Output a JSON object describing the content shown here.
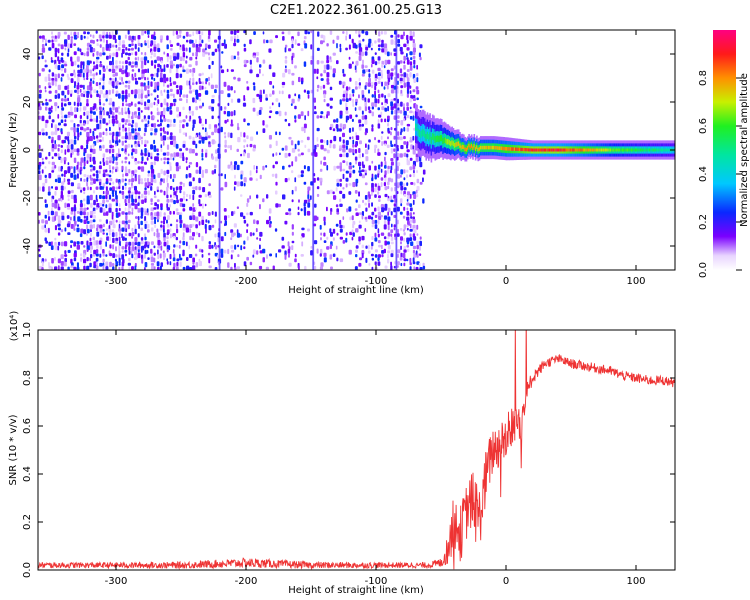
{
  "figure_title": "C2E1.2022.361.00.25.G13",
  "colors": {
    "snr_line": "#ee3333",
    "spectrogram_noise": "#6a00ff",
    "background": "#ffffff",
    "frame": "#000000"
  },
  "chart_data": [
    {
      "type": "heatmap",
      "name": "spectrogram",
      "title": "",
      "xlabel": "Height of straight line (km)",
      "ylabel": "Frequency (Hz)",
      "xlim": [
        -360,
        130
      ],
      "ylim": [
        -50,
        50
      ],
      "xticks": [
        -300,
        -200,
        -100,
        0,
        100
      ],
      "xtick_labels": [
        "-300",
        "-200",
        "-100",
        "0",
        "100"
      ],
      "yticks": [
        -40,
        -20,
        0,
        20,
        40
      ],
      "ytick_labels": [
        "-40",
        "-20",
        "0",
        "20",
        "40"
      ],
      "noise_region_x": [
        -360,
        -68
      ],
      "signal_track": {
        "x": [
          -70,
          -60,
          -50,
          -40,
          -30,
          -20,
          -10,
          0,
          20,
          40,
          60,
          80,
          100,
          130
        ],
        "freq": [
          9,
          5,
          4,
          2,
          1,
          1,
          1,
          0.5,
          0,
          0,
          0,
          0,
          0,
          0
        ],
        "width": [
          6,
          6,
          5,
          4,
          3,
          3,
          3,
          3,
          2.5,
          2.5,
          2.5,
          2.5,
          2.5,
          2.5
        ],
        "amplitude": [
          0.5,
          0.55,
          0.65,
          0.75,
          0.85,
          0.8,
          0.8,
          0.85,
          0.95,
          0.95,
          0.85,
          0.7,
          0.6,
          0.5
        ]
      },
      "colorbar": {
        "label": "Normalized spectral amplitude",
        "range": [
          0,
          1
        ],
        "ticks": [
          0.0,
          0.2,
          0.4,
          0.6,
          0.8
        ],
        "tick_labels": [
          "0.0",
          "0.2",
          "0.4",
          "0.6",
          "0.8"
        ]
      }
    },
    {
      "type": "line",
      "name": "snr",
      "title": "",
      "xlabel": "Height of straight line (km)",
      "ylabel": "SNR (10 * v/v)",
      "yscale_note": "(x10⁴)",
      "xlim": [
        -360,
        130
      ],
      "ylim": [
        0,
        1.0
      ],
      "xticks": [
        -300,
        -200,
        -100,
        0,
        100
      ],
      "xtick_labels": [
        "-300",
        "-200",
        "-100",
        "0",
        "100"
      ],
      "yticks": [
        0.0,
        0.2,
        0.4,
        0.6,
        0.8,
        1.0
      ],
      "ytick_labels": [
        "0.0",
        "0.2",
        "0.4",
        "0.6",
        "0.8",
        "1.0"
      ],
      "series": [
        {
          "name": "SNR",
          "x": [
            -360,
            -300,
            -250,
            -200,
            -150,
            -100,
            -60,
            -50,
            -45,
            -40,
            -35,
            -30,
            -25,
            -20,
            -15,
            -10,
            -5,
            0,
            5,
            10,
            20,
            30,
            40,
            50,
            60,
            70,
            80,
            90,
            100,
            110,
            120,
            130
          ],
          "y": [
            0.02,
            0.02,
            0.02,
            0.03,
            0.02,
            0.02,
            0.02,
            0.03,
            0.08,
            0.2,
            0.15,
            0.25,
            0.3,
            0.22,
            0.4,
            0.5,
            0.52,
            0.55,
            0.6,
            0.62,
            0.8,
            0.86,
            0.88,
            0.86,
            0.85,
            0.84,
            0.83,
            0.81,
            0.8,
            0.79,
            0.79,
            0.78
          ],
          "noise": [
            0.012,
            0.012,
            0.014,
            0.02,
            0.014,
            0.012,
            0.012,
            0.02,
            0.06,
            0.12,
            0.12,
            0.12,
            0.12,
            0.12,
            0.12,
            0.1,
            0.1,
            0.1,
            0.09,
            0.09,
            0.03,
            0.02,
            0.02,
            0.02,
            0.02,
            0.02,
            0.02,
            0.02,
            0.02,
            0.02,
            0.02,
            0.02
          ]
        }
      ]
    }
  ]
}
